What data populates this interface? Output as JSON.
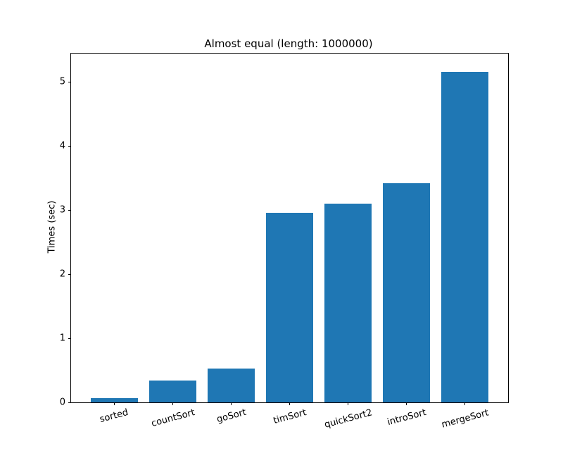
{
  "chart_data": {
    "type": "bar",
    "title": "Almost equal (length: 1000000)",
    "xlabel": "",
    "ylabel": "Times (sec)",
    "categories": [
      "sorted",
      "countSort",
      "goSort",
      "timSort",
      "quickSort2",
      "introSort",
      "mergeSort"
    ],
    "values": [
      0.07,
      0.34,
      0.53,
      2.96,
      3.1,
      3.42,
      5.15
    ],
    "yticks": [
      0,
      1,
      2,
      3,
      4,
      5
    ],
    "ylim": [
      0,
      5.44
    ],
    "bar_color": "#1f77b4",
    "spine_color": "#000000",
    "background_color": "#ffffff",
    "x_tick_rotation_deg": 15,
    "grid": false,
    "legend": null
  }
}
